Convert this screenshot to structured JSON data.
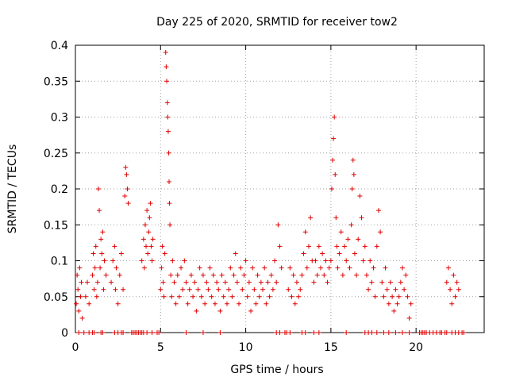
{
  "chart_data": {
    "type": "scatter",
    "title": "Day 225 of 2020, SRMTID for receiver tow2",
    "xlabel": "GPS time / hours",
    "ylabel": "SRMTID / TECUs",
    "xlim": [
      0,
      24
    ],
    "ylim": [
      0,
      0.4
    ],
    "xticks": [
      0,
      5,
      10,
      15,
      20
    ],
    "xtick_labels": [
      "0",
      "5",
      "10",
      "15",
      "20"
    ],
    "yticks": [
      0,
      0.05,
      0.1,
      0.15,
      0.2,
      0.25,
      0.3,
      0.35,
      0.4
    ],
    "ytick_labels": [
      "0",
      "0.05",
      "0.1",
      "0.15",
      "0.2",
      "0.25",
      "0.3",
      "0.35",
      "0.4"
    ],
    "grid": true,
    "marker": "+",
    "series": [
      {
        "name": "SRMTID",
        "color": "#e00000",
        "points": [
          [
            0.05,
            0.04
          ],
          [
            0.1,
            0.08
          ],
          [
            0.15,
            0.06
          ],
          [
            0.2,
            0.03
          ],
          [
            0.25,
            0.09
          ],
          [
            0.3,
            0.05
          ],
          [
            0.35,
            0.07
          ],
          [
            0.4,
            0.02
          ],
          [
            0.6,
            0.05
          ],
          [
            0.7,
            0.07
          ],
          [
            0.8,
            0.04
          ],
          [
            1.0,
            0.08
          ],
          [
            1.05,
            0.11
          ],
          [
            1.1,
            0.06
          ],
          [
            1.15,
            0.09
          ],
          [
            1.2,
            0.12
          ],
          [
            1.25,
            0.05
          ],
          [
            1.3,
            0.07
          ],
          [
            1.35,
            0.2
          ],
          [
            1.4,
            0.17
          ],
          [
            1.45,
            0.09
          ],
          [
            1.5,
            0.13
          ],
          [
            1.55,
            0.11
          ],
          [
            1.6,
            0.14
          ],
          [
            1.65,
            0.06
          ],
          [
            1.7,
            0.1
          ],
          [
            1.8,
            0.08
          ],
          [
            2.1,
            0.07
          ],
          [
            2.2,
            0.1
          ],
          [
            2.3,
            0.12
          ],
          [
            2.35,
            0.06
          ],
          [
            2.4,
            0.09
          ],
          [
            2.5,
            0.04
          ],
          [
            2.6,
            0.08
          ],
          [
            2.7,
            0.11
          ],
          [
            2.8,
            0.06
          ],
          [
            2.9,
            0.19
          ],
          [
            2.95,
            0.23
          ],
          [
            3.0,
            0.22
          ],
          [
            3.05,
            0.2
          ],
          [
            3.1,
            0.18
          ],
          [
            3.9,
            0.1
          ],
          [
            4.0,
            0.13
          ],
          [
            4.05,
            0.09
          ],
          [
            4.1,
            0.15
          ],
          [
            4.15,
            0.12
          ],
          [
            4.2,
            0.17
          ],
          [
            4.25,
            0.11
          ],
          [
            4.3,
            0.14
          ],
          [
            4.35,
            0.16
          ],
          [
            4.4,
            0.18
          ],
          [
            4.45,
            0.12
          ],
          [
            4.5,
            0.1
          ],
          [
            4.55,
            0.13
          ],
          [
            5.0,
            0.06
          ],
          [
            5.05,
            0.09
          ],
          [
            5.1,
            0.12
          ],
          [
            5.15,
            0.07
          ],
          [
            5.2,
            0.05
          ],
          [
            5.25,
            0.11
          ],
          [
            5.3,
            0.39
          ],
          [
            5.33,
            0.37
          ],
          [
            5.36,
            0.35
          ],
          [
            5.4,
            0.32
          ],
          [
            5.42,
            0.3
          ],
          [
            5.45,
            0.28
          ],
          [
            5.48,
            0.25
          ],
          [
            5.5,
            0.21
          ],
          [
            5.52,
            0.18
          ],
          [
            5.55,
            0.15
          ],
          [
            5.6,
            0.08
          ],
          [
            5.65,
            0.05
          ],
          [
            5.7,
            0.1
          ],
          [
            5.8,
            0.07
          ],
          [
            5.9,
            0.04
          ],
          [
            6.0,
            0.08
          ],
          [
            6.1,
            0.05
          ],
          [
            6.2,
            0.09
          ],
          [
            6.3,
            0.06
          ],
          [
            6.4,
            0.1
          ],
          [
            6.5,
            0.07
          ],
          [
            6.6,
            0.04
          ],
          [
            6.7,
            0.06
          ],
          [
            6.8,
            0.08
          ],
          [
            6.9,
            0.05
          ],
          [
            7.0,
            0.07
          ],
          [
            7.1,
            0.03
          ],
          [
            7.2,
            0.06
          ],
          [
            7.3,
            0.09
          ],
          [
            7.4,
            0.05
          ],
          [
            7.5,
            0.08
          ],
          [
            7.6,
            0.04
          ],
          [
            7.7,
            0.07
          ],
          [
            7.8,
            0.06
          ],
          [
            7.9,
            0.09
          ],
          [
            8.0,
            0.05
          ],
          [
            8.1,
            0.08
          ],
          [
            8.2,
            0.04
          ],
          [
            8.3,
            0.07
          ],
          [
            8.4,
            0.06
          ],
          [
            8.5,
            0.03
          ],
          [
            8.6,
            0.08
          ],
          [
            8.7,
            0.05
          ],
          [
            8.8,
            0.07
          ],
          [
            8.9,
            0.04
          ],
          [
            9.0,
            0.06
          ],
          [
            9.1,
            0.09
          ],
          [
            9.2,
            0.05
          ],
          [
            9.3,
            0.08
          ],
          [
            9.4,
            0.11
          ],
          [
            9.5,
            0.07
          ],
          [
            9.6,
            0.04
          ],
          [
            9.7,
            0.09
          ],
          [
            9.8,
            0.06
          ],
          [
            9.9,
            0.08
          ],
          [
            10.0,
            0.1
          ],
          [
            10.1,
            0.05
          ],
          [
            10.2,
            0.07
          ],
          [
            10.3,
            0.03
          ],
          [
            10.4,
            0.09
          ],
          [
            10.5,
            0.06
          ],
          [
            10.6,
            0.04
          ],
          [
            10.7,
            0.08
          ],
          [
            10.8,
            0.05
          ],
          [
            10.9,
            0.07
          ],
          [
            11.0,
            0.06
          ],
          [
            11.1,
            0.09
          ],
          [
            11.2,
            0.04
          ],
          [
            11.3,
            0.07
          ],
          [
            11.4,
            0.05
          ],
          [
            11.5,
            0.08
          ],
          [
            11.6,
            0.06
          ],
          [
            11.7,
            0.1
          ],
          [
            11.8,
            0.07
          ],
          [
            11.9,
            0.15
          ],
          [
            12.0,
            0.12
          ],
          [
            12.1,
            0.09
          ],
          [
            12.5,
            0.06
          ],
          [
            12.6,
            0.09
          ],
          [
            12.7,
            0.05
          ],
          [
            12.8,
            0.08
          ],
          [
            12.9,
            0.04
          ],
          [
            13.0,
            0.07
          ],
          [
            13.1,
            0.05
          ],
          [
            13.2,
            0.06
          ],
          [
            13.3,
            0.08
          ],
          [
            13.4,
            0.11
          ],
          [
            13.5,
            0.14
          ],
          [
            13.6,
            0.09
          ],
          [
            13.7,
            0.12
          ],
          [
            13.8,
            0.16
          ],
          [
            13.9,
            0.1
          ],
          [
            14.0,
            0.07
          ],
          [
            14.1,
            0.1
          ],
          [
            14.2,
            0.08
          ],
          [
            14.3,
            0.12
          ],
          [
            14.4,
            0.09
          ],
          [
            14.5,
            0.11
          ],
          [
            14.6,
            0.08
          ],
          [
            14.7,
            0.1
          ],
          [
            14.8,
            0.07
          ],
          [
            14.9,
            0.09
          ],
          [
            15.0,
            0.1
          ],
          [
            15.05,
            0.2
          ],
          [
            15.1,
            0.24
          ],
          [
            15.15,
            0.27
          ],
          [
            15.2,
            0.3
          ],
          [
            15.25,
            0.22
          ],
          [
            15.3,
            0.16
          ],
          [
            15.35,
            0.12
          ],
          [
            15.4,
            0.09
          ],
          [
            15.5,
            0.11
          ],
          [
            15.6,
            0.14
          ],
          [
            15.7,
            0.08
          ],
          [
            15.8,
            0.12
          ],
          [
            15.9,
            0.1
          ],
          [
            16.0,
            0.13
          ],
          [
            16.1,
            0.09
          ],
          [
            16.2,
            0.15
          ],
          [
            16.25,
            0.2
          ],
          [
            16.3,
            0.24
          ],
          [
            16.35,
            0.22
          ],
          [
            16.4,
            0.11
          ],
          [
            16.5,
            0.08
          ],
          [
            16.6,
            0.13
          ],
          [
            16.7,
            0.19
          ],
          [
            16.8,
            0.16
          ],
          [
            16.9,
            0.1
          ],
          [
            17.0,
            0.12
          ],
          [
            17.1,
            0.08
          ],
          [
            17.2,
            0.06
          ],
          [
            17.3,
            0.1
          ],
          [
            17.4,
            0.07
          ],
          [
            17.5,
            0.09
          ],
          [
            17.6,
            0.05
          ],
          [
            17.7,
            0.12
          ],
          [
            17.8,
            0.17
          ],
          [
            17.9,
            0.14
          ],
          [
            18.0,
            0.07
          ],
          [
            18.1,
            0.05
          ],
          [
            18.2,
            0.09
          ],
          [
            18.3,
            0.06
          ],
          [
            18.4,
            0.04
          ],
          [
            18.5,
            0.07
          ],
          [
            18.6,
            0.05
          ],
          [
            18.7,
            0.03
          ],
          [
            18.8,
            0.06
          ],
          [
            18.9,
            0.04
          ],
          [
            19.0,
            0.05
          ],
          [
            19.1,
            0.07
          ],
          [
            19.2,
            0.09
          ],
          [
            19.3,
            0.06
          ],
          [
            19.4,
            0.08
          ],
          [
            19.5,
            0.05
          ],
          [
            19.6,
            0.02
          ],
          [
            19.7,
            0.04
          ],
          [
            21.8,
            0.07
          ],
          [
            21.9,
            0.09
          ],
          [
            22.0,
            0.06
          ],
          [
            22.1,
            0.04
          ],
          [
            22.2,
            0.08
          ],
          [
            22.3,
            0.05
          ],
          [
            22.4,
            0.07
          ],
          [
            22.5,
            0.06
          ],
          [
            0.2,
            0
          ],
          [
            0.5,
            0
          ],
          [
            0.8,
            0
          ],
          [
            1.0,
            0
          ],
          [
            1.1,
            0
          ],
          [
            1.5,
            0
          ],
          [
            1.6,
            0
          ],
          [
            2.3,
            0
          ],
          [
            2.5,
            0
          ],
          [
            2.7,
            0
          ],
          [
            2.8,
            0
          ],
          [
            3.3,
            0
          ],
          [
            3.4,
            0
          ],
          [
            3.5,
            0
          ],
          [
            3.6,
            0
          ],
          [
            3.7,
            0
          ],
          [
            3.8,
            0
          ],
          [
            3.9,
            0
          ],
          [
            4.0,
            0
          ],
          [
            4.2,
            0
          ],
          [
            4.5,
            0
          ],
          [
            4.8,
            0
          ],
          [
            4.9,
            0
          ],
          [
            6.5,
            0
          ],
          [
            7.5,
            0
          ],
          [
            8.5,
            0
          ],
          [
            11.8,
            0
          ],
          [
            12.0,
            0
          ],
          [
            12.3,
            0
          ],
          [
            12.4,
            0
          ],
          [
            12.6,
            0
          ],
          [
            13.3,
            0
          ],
          [
            13.5,
            0
          ],
          [
            14.0,
            0
          ],
          [
            14.3,
            0
          ],
          [
            15.9,
            0
          ],
          [
            17.0,
            0
          ],
          [
            17.2,
            0
          ],
          [
            17.4,
            0
          ],
          [
            17.7,
            0
          ],
          [
            18.1,
            0
          ],
          [
            18.4,
            0
          ],
          [
            18.8,
            0
          ],
          [
            19.2,
            0
          ],
          [
            19.6,
            0
          ],
          [
            20.2,
            0
          ],
          [
            20.3,
            0
          ],
          [
            20.4,
            0
          ],
          [
            20.5,
            0
          ],
          [
            20.6,
            0
          ],
          [
            20.8,
            0
          ],
          [
            21.0,
            0
          ],
          [
            21.2,
            0
          ],
          [
            21.4,
            0
          ],
          [
            21.5,
            0
          ],
          [
            21.7,
            0
          ],
          [
            21.8,
            0
          ],
          [
            22.1,
            0
          ],
          [
            22.3,
            0
          ],
          [
            22.5,
            0
          ],
          [
            22.7,
            0
          ],
          [
            22.8,
            0
          ]
        ]
      }
    ]
  }
}
